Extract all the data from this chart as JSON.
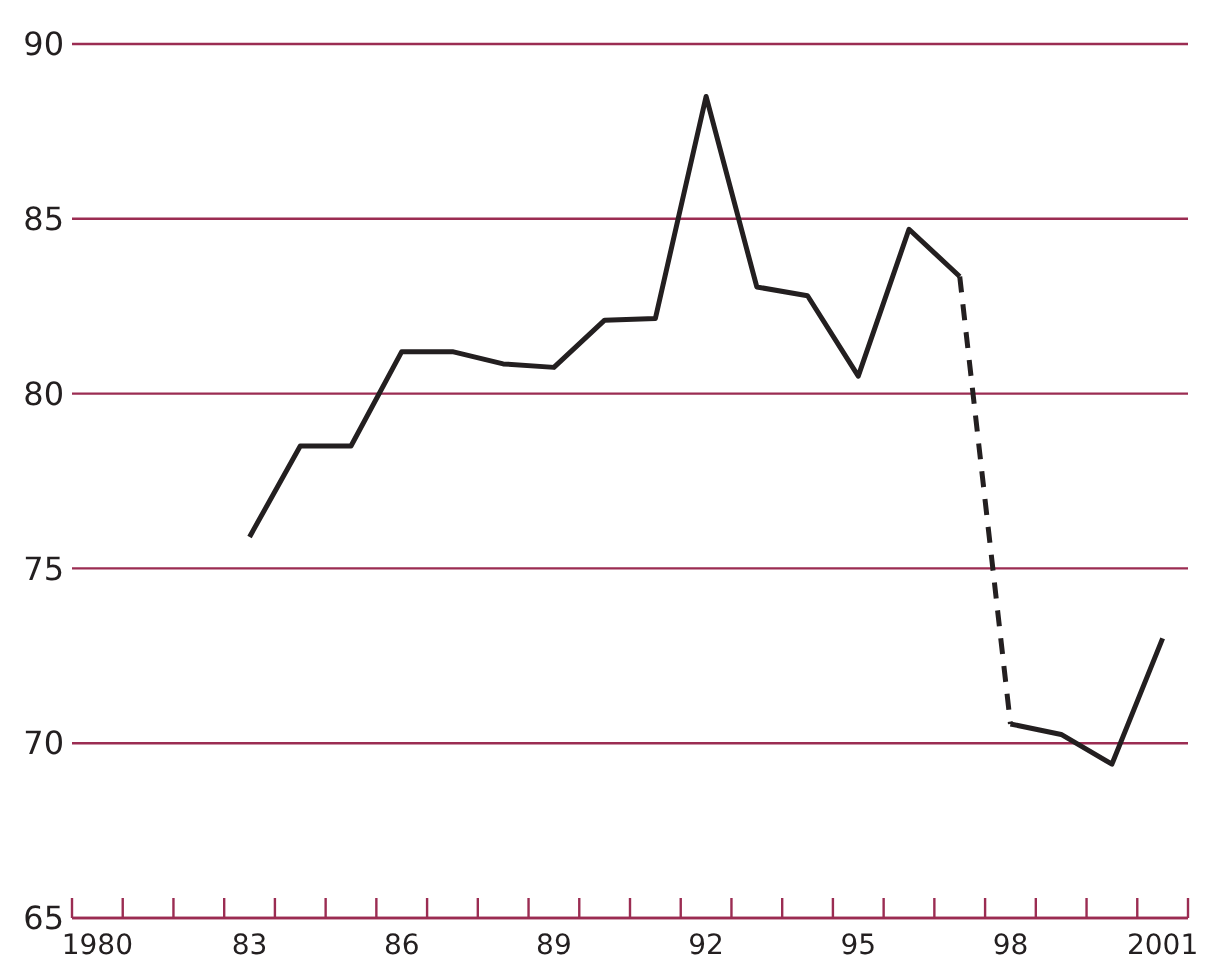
{
  "chart_data": {
    "type": "line",
    "xlim": [
      1979.5,
      2001.5
    ],
    "ylim": [
      65,
      90
    ],
    "yticks": [
      65,
      70,
      75,
      80,
      85,
      90
    ],
    "xticks": [
      {
        "value": 1979.5,
        "label": null
      },
      {
        "value": 1980,
        "label": "1980"
      },
      {
        "value": 1980.5,
        "label": null
      },
      {
        "value": 1981.5,
        "label": null
      },
      {
        "value": 1982.5,
        "label": null
      },
      {
        "value": 1983,
        "label": "83"
      },
      {
        "value": 1983.5,
        "label": null
      },
      {
        "value": 1984.5,
        "label": null
      },
      {
        "value": 1985.5,
        "label": null
      },
      {
        "value": 1986,
        "label": "86"
      },
      {
        "value": 1986.5,
        "label": null
      },
      {
        "value": 1987.5,
        "label": null
      },
      {
        "value": 1988.5,
        "label": null
      },
      {
        "value": 1989,
        "label": "89"
      },
      {
        "value": 1989.5,
        "label": null
      },
      {
        "value": 1990.5,
        "label": null
      },
      {
        "value": 1991.5,
        "label": null
      },
      {
        "value": 1992,
        "label": "92"
      },
      {
        "value": 1992.5,
        "label": null
      },
      {
        "value": 1993.5,
        "label": null
      },
      {
        "value": 1994.5,
        "label": null
      },
      {
        "value": 1995,
        "label": "95"
      },
      {
        "value": 1995.5,
        "label": null
      },
      {
        "value": 1996.5,
        "label": null
      },
      {
        "value": 1997.5,
        "label": null
      },
      {
        "value": 1998,
        "label": "98"
      },
      {
        "value": 1998.5,
        "label": null
      },
      {
        "value": 1999.5,
        "label": null
      },
      {
        "value": 2000.5,
        "label": null
      },
      {
        "value": 2001,
        "label": "2001"
      },
      {
        "value": 2001.5,
        "label": null
      }
    ],
    "grid": "y",
    "series": [
      {
        "color": "#231f20",
        "line_style": "solid",
        "x": [
          1983,
          1984,
          1985,
          1986,
          1987,
          1988,
          1989,
          1990,
          1991,
          1992,
          1993,
          1994,
          1995,
          1996,
          1997
        ],
        "values": [
          75.9,
          78.5,
          78.5,
          81.2,
          81.2,
          80.85,
          80.75,
          82.1,
          82.15,
          88.5,
          83.05,
          82.8,
          80.5,
          84.7,
          83.35
        ]
      },
      {
        "color": "#231f20",
        "line_style": "dashed",
        "x": [
          1997,
          1998
        ],
        "values": [
          83.35,
          70.55
        ]
      },
      {
        "color": "#231f20",
        "line_style": "solid",
        "x": [
          1998,
          1999,
          2000,
          2001
        ],
        "values": [
          70.55,
          70.25,
          69.4,
          73.0
        ]
      }
    ]
  }
}
